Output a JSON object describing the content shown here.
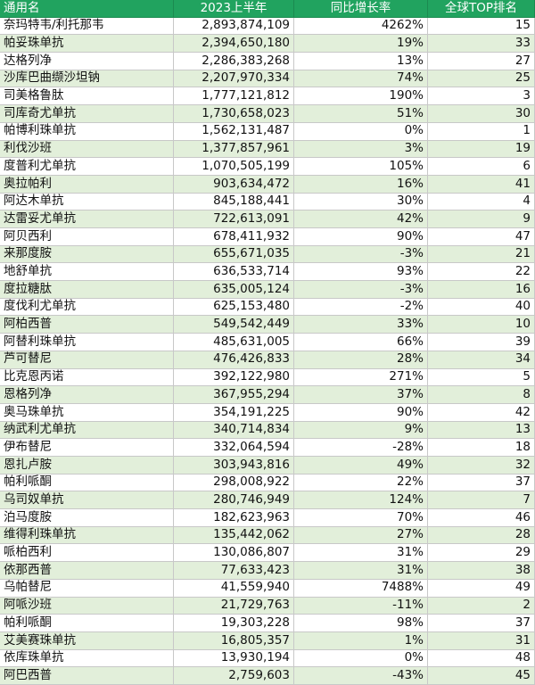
{
  "table": {
    "header": [
      "通用名",
      "2023上半年",
      "同比增长率",
      "全球TOP排名"
    ],
    "rows": [
      [
        "奈玛特韦/利托那韦",
        "2,893,874,109",
        "4262%",
        "15"
      ],
      [
        "帕妥珠单抗",
        "2,394,650,180",
        "19%",
        "33"
      ],
      [
        "达格列净",
        "2,286,383,268",
        "13%",
        "27"
      ],
      [
        "沙库巴曲缬沙坦钠",
        "2,207,970,334",
        "74%",
        "25"
      ],
      [
        "司美格鲁肽",
        "1,777,121,812",
        "190%",
        "3"
      ],
      [
        "司库奇尤单抗",
        "1,730,658,023",
        "51%",
        "30"
      ],
      [
        "帕博利珠单抗",
        "1,562,131,487",
        "0%",
        "1"
      ],
      [
        "利伐沙班",
        "1,377,857,961",
        "3%",
        "19"
      ],
      [
        "度普利尤单抗",
        "1,070,505,199",
        "105%",
        "6"
      ],
      [
        "奥拉帕利",
        "903,634,472",
        "16%",
        "41"
      ],
      [
        "阿达木单抗",
        "845,188,441",
        "30%",
        "4"
      ],
      [
        "达雷妥尤单抗",
        "722,613,091",
        "42%",
        "9"
      ],
      [
        "阿贝西利",
        "678,411,932",
        "90%",
        "47"
      ],
      [
        "来那度胺",
        "655,671,035",
        "-3%",
        "21"
      ],
      [
        "地舒单抗",
        "636,533,714",
        "93%",
        "22"
      ],
      [
        "度拉糖肽",
        "635,005,124",
        "-3%",
        "16"
      ],
      [
        "度伐利尤单抗",
        "625,153,480",
        "-2%",
        "40"
      ],
      [
        "阿柏西普",
        "549,542,449",
        "33%",
        "10"
      ],
      [
        "阿替利珠单抗",
        "485,631,005",
        "66%",
        "39"
      ],
      [
        "芦可替尼",
        "476,426,833",
        "28%",
        "34"
      ],
      [
        "比克恩丙诺",
        "392,122,980",
        "271%",
        "5"
      ],
      [
        "恩格列净",
        "367,955,294",
        "37%",
        "8"
      ],
      [
        "奥马珠单抗",
        "354,191,225",
        "90%",
        "42"
      ],
      [
        "纳武利尤单抗",
        "340,714,834",
        "9%",
        "13"
      ],
      [
        "伊布替尼",
        "332,064,594",
        "-28%",
        "18"
      ],
      [
        "恩扎卢胺",
        "303,943,816",
        "49%",
        "32"
      ],
      [
        "帕利哌酮",
        "298,008,922",
        "22%",
        "37"
      ],
      [
        "乌司奴单抗",
        "280,746,949",
        "124%",
        "7"
      ],
      [
        "泊马度胺",
        "182,623,963",
        "70%",
        "46"
      ],
      [
        "维得利珠单抗",
        "135,442,062",
        "27%",
        "28"
      ],
      [
        "哌柏西利",
        "130,086,807",
        "31%",
        "29"
      ],
      [
        "依那西普",
        "77,633,423",
        "31%",
        "38"
      ],
      [
        "乌帕替尼",
        "41,559,940",
        "7488%",
        "49"
      ],
      [
        "阿哌沙班",
        "21,729,763",
        "-11%",
        "2"
      ],
      [
        "帕利哌酮",
        "19,303,228",
        "98%",
        "37"
      ],
      [
        "艾美赛珠单抗",
        "16,805,357",
        "1%",
        "31"
      ],
      [
        "依库珠单抗",
        "13,930,194",
        "0%",
        "48"
      ],
      [
        "阿巴西普",
        "2,759,603",
        "-43%",
        "45"
      ]
    ]
  }
}
